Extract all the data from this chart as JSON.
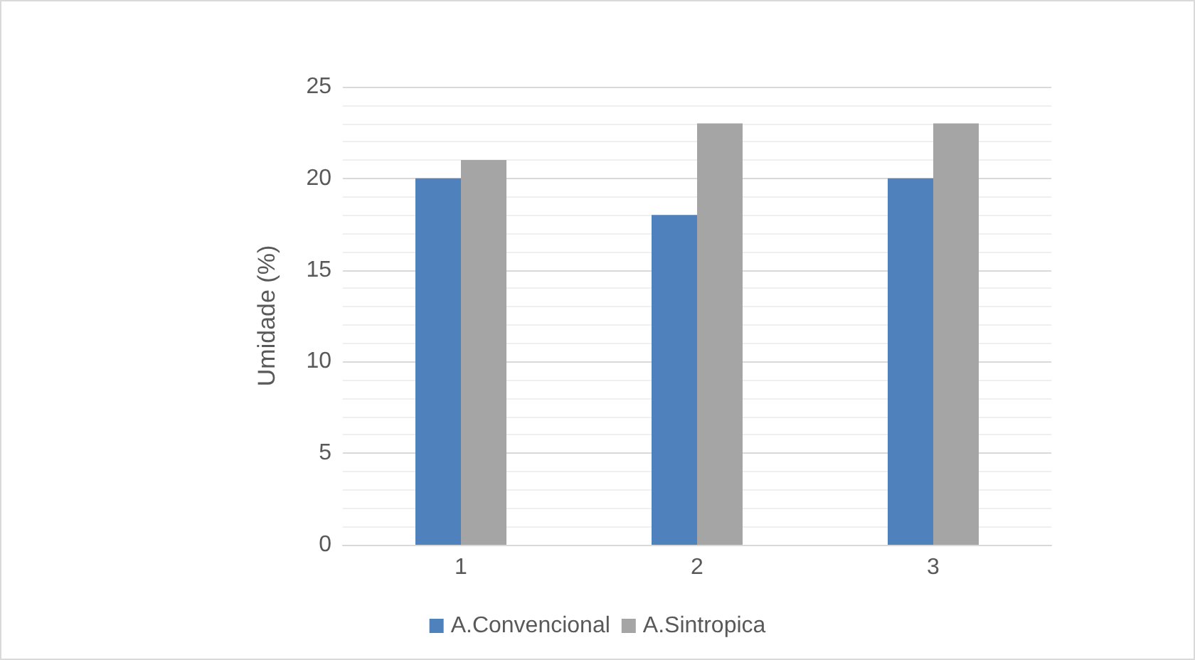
{
  "chart_data": {
    "type": "bar",
    "ylabel": "Umidade (%)",
    "categories": [
      "1",
      "2",
      "3"
    ],
    "series": [
      {
        "name": "A.Convencional",
        "color": "#4f81bd",
        "values": [
          20,
          18,
          20
        ]
      },
      {
        "name": "A.Sintropica",
        "color": "#a5a5a5",
        "values": [
          21,
          23,
          23
        ]
      }
    ],
    "ylim": [
      0,
      25
    ],
    "yticks": [
      0,
      5,
      10,
      15,
      20,
      25
    ],
    "grid": "y",
    "legend": "bottom"
  }
}
